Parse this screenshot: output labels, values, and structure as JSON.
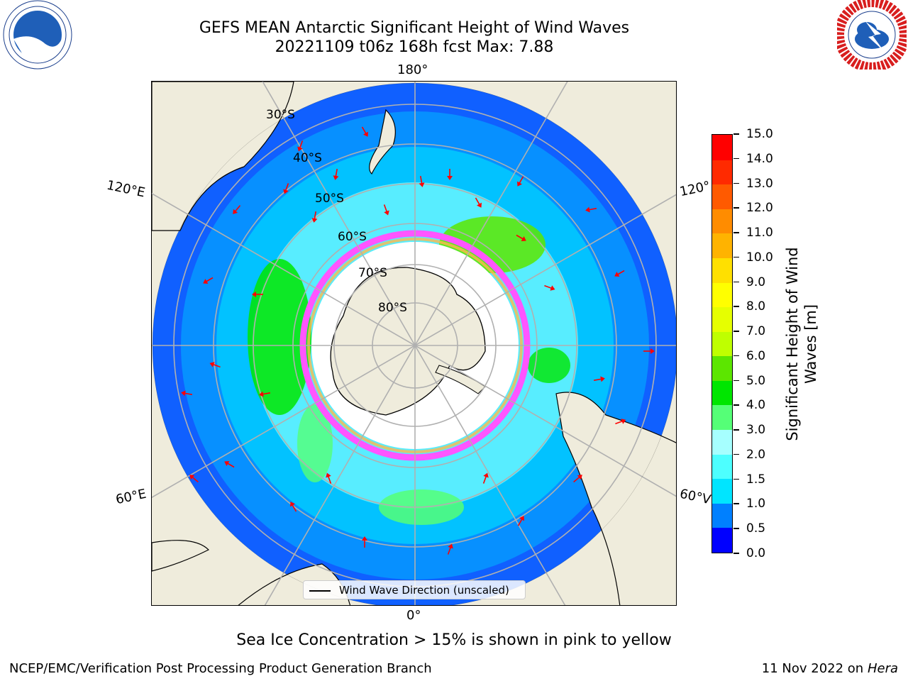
{
  "header": {
    "title_line1": "GEFS MEAN Antarctic Significant Height of Wind Waves",
    "title_line2": "20221109 t06z 168h fcst   Max: 7.88"
  },
  "logos": {
    "left": "NOAA",
    "right": "NATIONAL WEATHER SERVICE"
  },
  "map": {
    "projection": "south-polar-stereographic",
    "lat_labels": [
      "30°S",
      "40°S",
      "50°S",
      "60°S",
      "70°S",
      "80°S"
    ],
    "lon_labels": {
      "top": "180°",
      "upper_left": "120°E",
      "upper_right": "120°",
      "lower_left": "60°E",
      "lower_right": "60°V",
      "bottom": "0°"
    },
    "legend_label": "Wind Wave Direction (unscaled)",
    "colors": {
      "land": "#efecdc",
      "sea_ice": "#ff55ff",
      "arrow": "#ff0000",
      "grid": "#b0b0b0"
    }
  },
  "colorbar": {
    "title": "Significant Height of Wind Waves [m]",
    "title_line1": "Significant Height of Wind",
    "title_line2": "Waves [m]",
    "ticks": [
      "0.0",
      "0.5",
      "1.0",
      "1.5",
      "2.0",
      "3.0",
      "4.0",
      "5.0",
      "6.0",
      "7.0",
      "8.0",
      "9.0",
      "10.0",
      "11.0",
      "12.0",
      "13.0",
      "14.0",
      "15.0"
    ],
    "colors": [
      "#0000ff",
      "#0080ff",
      "#00e5ff",
      "#4dffff",
      "#a6ffff",
      "#55ff77",
      "#00e600",
      "#5ce600",
      "#bfff00",
      "#e6ff00",
      "#ffff00",
      "#ffe000",
      "#ffb300",
      "#ff8c00",
      "#ff5a00",
      "#ff2a00",
      "#ff0000"
    ]
  },
  "footer": {
    "note": "Sea Ice Concentration > 15% is shown in pink to yellow",
    "left": "NCEP/EMC/Verification Post Processing Product Generation Branch",
    "date": "11 Nov 2022 on",
    "machine": "Hera"
  }
}
